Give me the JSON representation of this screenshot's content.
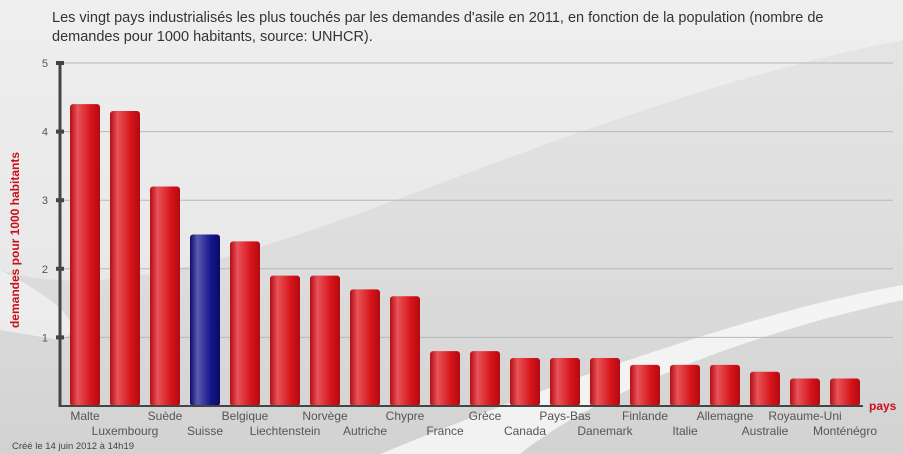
{
  "chart_data": {
    "type": "bar",
    "title": "Les vingt pays industrialisés les plus touchés par les demandes d'asile en 2011, en fonction de la population (nombre de demandes pour 1000 habitants, source: UNHCR).",
    "xlabel": "pays",
    "ylabel": "demandes pour 1000 habitants",
    "ylim": [
      0,
      5
    ],
    "yticks": [
      1,
      2,
      3,
      4,
      5
    ],
    "grid": true,
    "categories": [
      "Malte",
      "Luxembourg",
      "Suède",
      "Suisse",
      "Belgique",
      "Liechtenstein",
      "Norvège",
      "Autriche",
      "Chypre",
      "France",
      "Grèce",
      "Canada",
      "Pays-Bas",
      "Danemark",
      "Finlande",
      "Italie",
      "Allemagne",
      "Australie",
      "Royaume-Uni",
      "Monténégro"
    ],
    "values": [
      4.4,
      4.3,
      3.2,
      2.5,
      2.4,
      1.9,
      1.9,
      1.7,
      1.6,
      0.8,
      0.8,
      0.7,
      0.7,
      0.7,
      0.6,
      0.6,
      0.6,
      0.5,
      0.4,
      0.4
    ],
    "highlight": "Suisse",
    "colors": {
      "default": "#d90f16",
      "highlight": "#16168a",
      "axis_label": "#c8101a"
    }
  },
  "footer": {
    "credit": "Créé le 14 juin 2012 à 14h19"
  }
}
